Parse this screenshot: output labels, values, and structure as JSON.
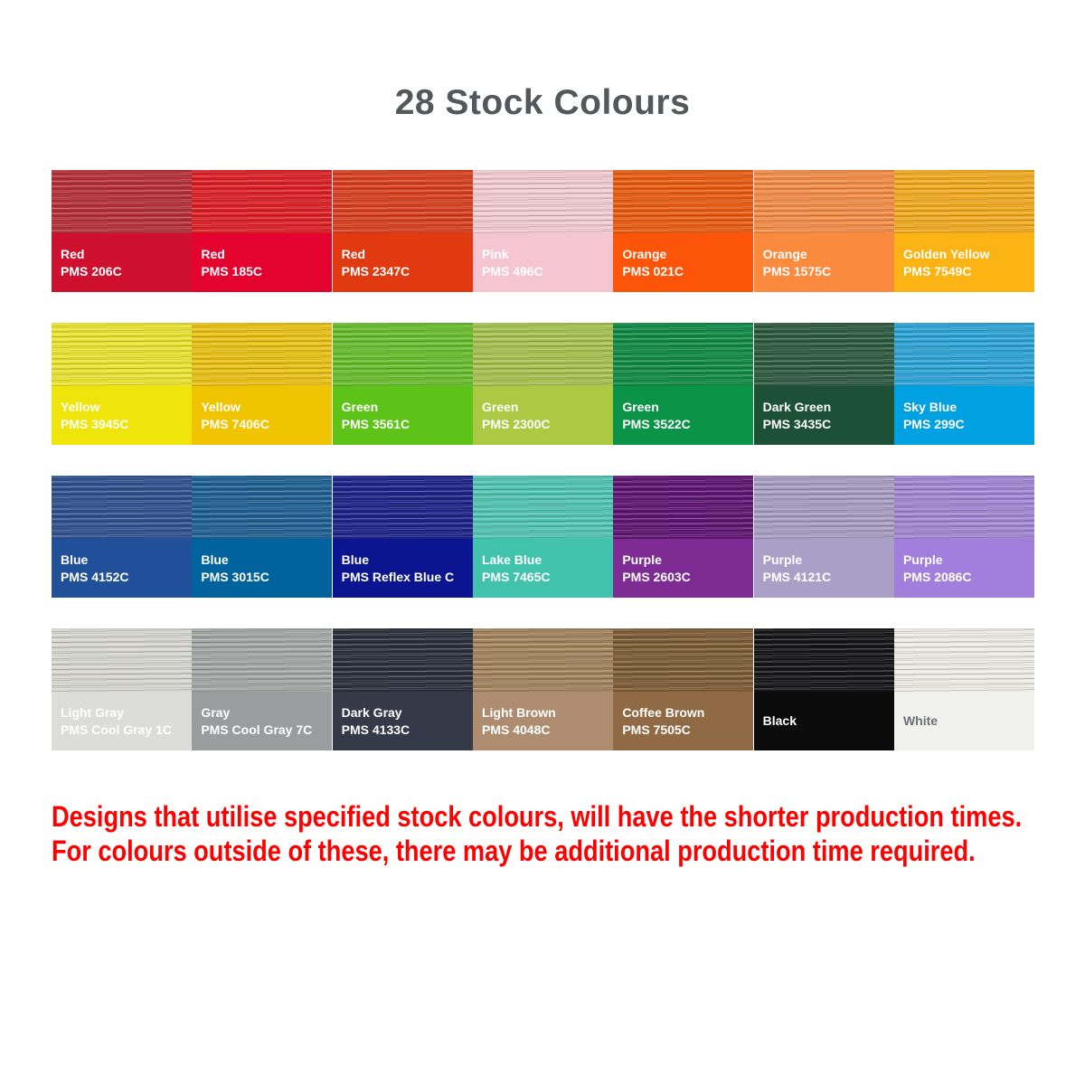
{
  "title": "28 Stock Colours",
  "footer": {
    "line1": "Designs that utilise specified stock colours, will have the shorter production times.",
    "line2": "For colours outside of these, there may be additional production time required.",
    "color": "#ff0000"
  },
  "title_color": "#54575b",
  "swatches": [
    {
      "name": "Red",
      "pms": "PMS 206C",
      "color": "#ce0f2d",
      "texture": "#b6303a",
      "text_color": "#ffffff"
    },
    {
      "name": "Red",
      "pms": "PMS 185C",
      "color": "#e4032e",
      "texture": "#dc2026",
      "text_color": "#ffffff"
    },
    {
      "name": "Red",
      "pms": "PMS 2347C",
      "color": "#e23a10",
      "texture": "#d84020",
      "text_color": "#ffffff"
    },
    {
      "name": "Pink",
      "pms": "PMS 496C",
      "color": "#f5c6d1",
      "texture": "#f3ccd3",
      "text_color": "#ffffff"
    },
    {
      "name": "Orange",
      "pms": "PMS 021C",
      "color": "#fc5408",
      "texture": "#e95c12",
      "text_color": "#ffffff"
    },
    {
      "name": "Orange",
      "pms": "PMS 1575C",
      "color": "#fa8a3e",
      "texture": "#f48d48",
      "text_color": "#ffffff"
    },
    {
      "name": "Golden Yellow",
      "pms": "PMS 7549C",
      "color": "#fcb415",
      "texture": "#f2ab20",
      "text_color": "#ffffff"
    },
    {
      "name": "Yellow",
      "pms": "PMS 3945C",
      "color": "#efe50a",
      "texture": "#ece433",
      "text_color": "#ffffff"
    },
    {
      "name": "Yellow",
      "pms": "PMS 7406C",
      "color": "#f1c402",
      "texture": "#eac216",
      "text_color": "#ffffff"
    },
    {
      "name": "Green",
      "pms": "PMS 3561C",
      "color": "#5ec318",
      "texture": "#69bd2e",
      "text_color": "#ffffff"
    },
    {
      "name": "Green",
      "pms": "PMS 2300C",
      "color": "#abc943",
      "texture": "#a6c250",
      "text_color": "#ffffff"
    },
    {
      "name": "Green",
      "pms": "PMS 3522C",
      "color": "#0b9347",
      "texture": "#118a45",
      "text_color": "#ffffff"
    },
    {
      "name": "Dark Green",
      "pms": "PMS 3435C",
      "color": "#1d5137",
      "texture": "#2e5a40",
      "text_color": "#ffffff"
    },
    {
      "name": "Sky Blue",
      "pms": "PMS 299C",
      "color": "#00a1e0",
      "texture": "#2da3d6",
      "text_color": "#ffffff"
    },
    {
      "name": "Blue",
      "pms": "PMS 4152C",
      "color": "#20509a",
      "texture": "#31518f",
      "text_color": "#ffffff"
    },
    {
      "name": "Blue",
      "pms": "PMS 3015C",
      "color": "#01639e",
      "texture": "#1f6193",
      "text_color": "#ffffff"
    },
    {
      "name": "Blue",
      "pms": "PMS Reflex Blue C",
      "color": "#0c1590",
      "texture": "#1d2488",
      "text_color": "#ffffff"
    },
    {
      "name": "Lake Blue",
      "pms": "PMS 7465C",
      "color": "#41c2ad",
      "texture": "#52c5b2",
      "text_color": "#ffffff"
    },
    {
      "name": "Purple",
      "pms": "PMS 2603C",
      "color": "#7e2b94",
      "texture": "#5e1672",
      "text_color": "#ffffff"
    },
    {
      "name": "Purple",
      "pms": "PMS 4121C",
      "color": "#aaa0c7",
      "texture": "#a89ec2",
      "text_color": "#ffffff"
    },
    {
      "name": "Purple",
      "pms": "PMS 2086C",
      "color": "#a27fdc",
      "texture": "#a287d4",
      "text_color": "#ffffff"
    },
    {
      "name": "Light Gray",
      "pms": "PMS Cool Gray 1C",
      "color": "#dcdcd9",
      "texture": "#d7d7d0",
      "text_color": "#ffffff"
    },
    {
      "name": "Gray",
      "pms": "PMS Cool Gray 7C",
      "color": "#9a9c9e",
      "texture": "#a5a7a7",
      "text_color": "#ffffff"
    },
    {
      "name": "Dark Gray",
      "pms": "PMS 4133C",
      "color": "#343a47",
      "texture": "#2a303b",
      "text_color": "#ffffff"
    },
    {
      "name": "Light Brown",
      "pms": "PMS 4048C",
      "color": "#ad8c6f",
      "texture": "#a2835d",
      "text_color": "#ffffff"
    },
    {
      "name": "Coffee Brown",
      "pms": "PMS 7505C",
      "color": "#906a44",
      "texture": "#7d5c36",
      "text_color": "#ffffff"
    },
    {
      "name": "Black",
      "pms": "",
      "color": "#0b0b0c",
      "texture": "#151517",
      "text_color": "#ffffff"
    },
    {
      "name": "White",
      "pms": "",
      "color": "#f1f1ee",
      "texture": "#edece4",
      "text_color": "#6e7275"
    }
  ]
}
